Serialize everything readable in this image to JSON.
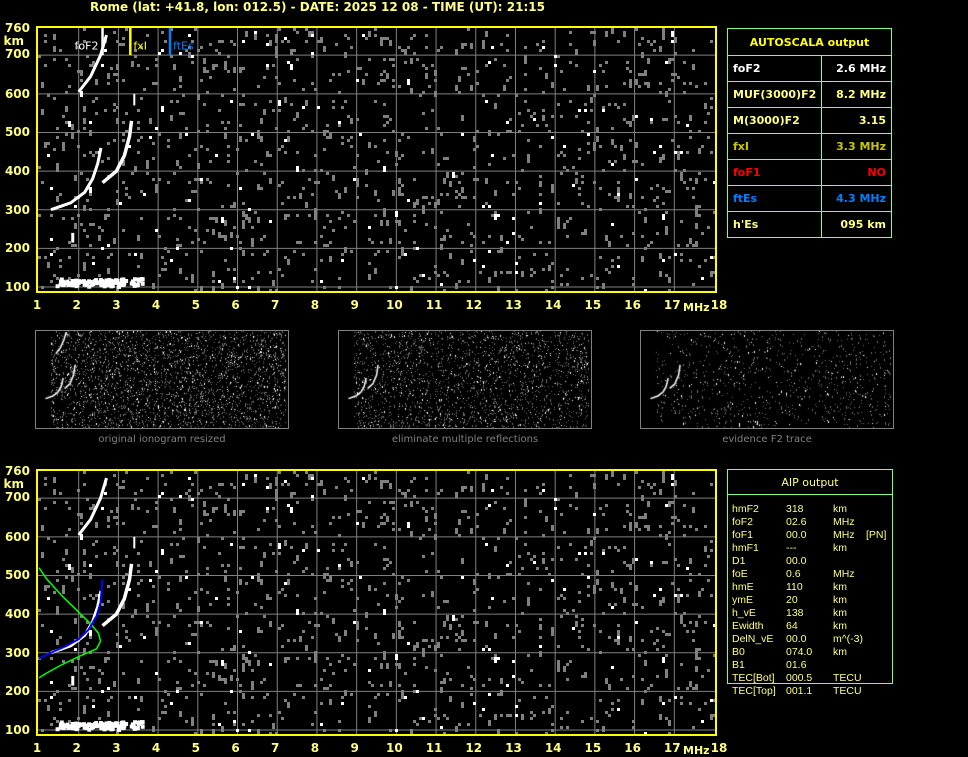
{
  "title": "Rome (lat: +41.8, lon: 012.5) - DATE: 2025 12 08 - TIME (UT): 21:15",
  "axes": {
    "y_ticks": [
      "760",
      "700",
      "600",
      "500",
      "400",
      "300",
      "200",
      "100"
    ],
    "y_unit": "km",
    "x_ticks": [
      "1",
      "2",
      "3",
      "4",
      "5",
      "6",
      "7",
      "8",
      "9",
      "10",
      "11",
      "12",
      "13",
      "14",
      "15",
      "16",
      "17",
      "18"
    ],
    "x_unit": "MHz"
  },
  "markers": [
    {
      "label": "foF2",
      "freq_mhz": 2.6,
      "color": "#ffffff"
    },
    {
      "label": "fxI",
      "freq_mhz": 3.3,
      "color": "#ffff00"
    },
    {
      "label": "ftEs",
      "freq_mhz": 4.3,
      "color": "#0080ff"
    }
  ],
  "autoscala": {
    "header": "AUTOSCALA output",
    "rows": [
      {
        "label": "foF2",
        "value": "2.6 MHz",
        "color": "#ffffff"
      },
      {
        "label": "MUF(3000)F2",
        "value": "8.2 MHz",
        "color": "#ffff80"
      },
      {
        "label": "M(3000)F2",
        "value": "3.15",
        "color": "#ffff80"
      },
      {
        "label": "fxI",
        "value": "3.3 MHz",
        "color": "#c8c800"
      },
      {
        "label": "foF1",
        "value": "NO",
        "color": "#ff0000"
      },
      {
        "label": "ftEs",
        "value": "4.3 MHz",
        "color": "#0080ff"
      },
      {
        "label": "h'Es",
        "value": "095    km",
        "color": "#ffff80"
      }
    ]
  },
  "thumbnails": [
    {
      "caption": "original ionogram resized"
    },
    {
      "caption": "eliminate multiple reflections"
    },
    {
      "caption": "evidence F2 trace"
    }
  ],
  "aip": {
    "header": "AIP output",
    "rows": [
      [
        "hmF2",
        "318",
        "km",
        ""
      ],
      [
        "foF2",
        "02.6",
        "MHz",
        ""
      ],
      [
        "foF1",
        "00.0",
        "MHz",
        "[PN]"
      ],
      [
        "hmF1",
        "---",
        "km",
        ""
      ],
      [
        "D1",
        "00.0",
        "",
        ""
      ],
      [
        "foE",
        "0.6",
        "MHz",
        ""
      ],
      [
        "hmE",
        "110",
        "km",
        ""
      ],
      [
        "ymE",
        "20",
        "km",
        ""
      ],
      [
        "h_vE",
        "138",
        "km",
        ""
      ],
      [
        "Ewidth",
        "64",
        "km",
        ""
      ],
      [
        "DelN_vE",
        "00.0",
        "m^(-3)",
        ""
      ],
      [
        "B0",
        "074.0",
        "km",
        ""
      ],
      [
        "B1",
        "01.6",
        "",
        ""
      ],
      [
        "TEC[Bot]",
        "000.5",
        "TECU",
        ""
      ],
      [
        "TEC[Top]",
        "001.1",
        "TECU",
        ""
      ]
    ]
  },
  "colors": {
    "axis": "#ffff00",
    "grid": "#808080",
    "profile": "#00ff00",
    "trace_fit": "#0000ff",
    "table_border": "#80ff80"
  }
}
